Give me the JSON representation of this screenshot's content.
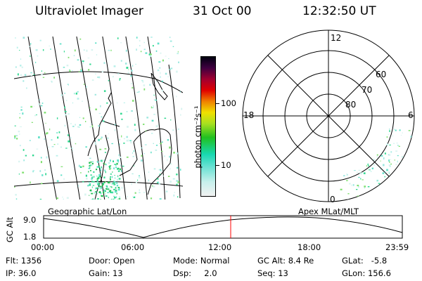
{
  "header": {
    "instrument": "Ultraviolet Imager",
    "date": "31 Oct 00",
    "time": "12:32:50 UT"
  },
  "colorbar": {
    "label": "photon cm⁻²s⁻¹",
    "ticks": [
      "100",
      "10"
    ],
    "scale": "log"
  },
  "polar_plot": {
    "mlt_labels": [
      "12",
      "18",
      "6",
      "0"
    ],
    "mlat_labels": [
      "60",
      "70",
      "80"
    ]
  },
  "map_labels": {
    "left": "Geographic Lat/Lon",
    "right": "Apex MLat/MLT"
  },
  "altitude_track": {
    "ylabel": "GC Alt",
    "yticks": [
      "9.0",
      "1.8"
    ],
    "xticks": [
      "00:00",
      "06:00",
      "12:00",
      "18:00",
      "23:59"
    ],
    "current_time_marker": "12:32"
  },
  "info": {
    "flt": "Flt: 1356",
    "ip": "IP: 36.0",
    "door": "Door: Open",
    "gain": "Gain: 13",
    "mode": "Mode: Normal",
    "dsp": "Dsp:     2.0",
    "gcalt": "GC Alt: 8.4 Re",
    "seq": "Seq: 13",
    "glat": "GLat:   -5.8",
    "glon": "GLon: 156.6"
  },
  "colors": {
    "marker": "#ff0000",
    "colorbar_stops": [
      "#f2f2f2",
      "#8ee8e0",
      "#18d8b0",
      "#20c020",
      "#a8e020",
      "#f0e000",
      "#f08000",
      "#e00000",
      "#a00030",
      "#400040",
      "#000010"
    ]
  }
}
